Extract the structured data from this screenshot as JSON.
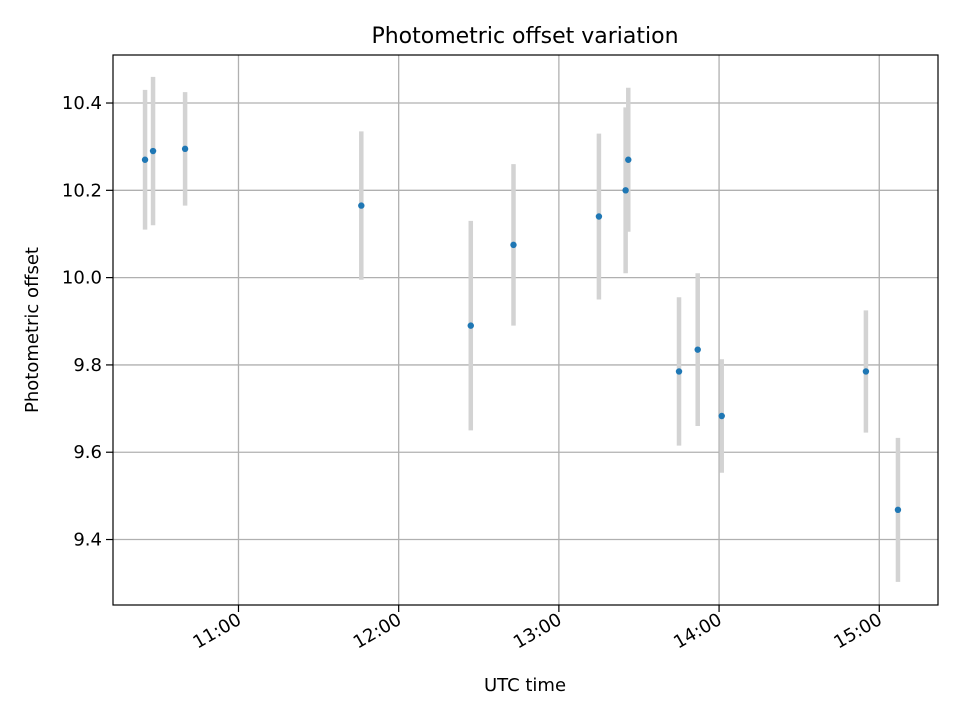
{
  "chart_data": {
    "type": "scatter",
    "title": "Photometric offset variation",
    "xlabel": "UTC time",
    "ylabel": "Photometric offset",
    "x_tick_labels": [
      "11:00",
      "12:00",
      "13:00",
      "14:00",
      "15:00"
    ],
    "x_ticks": [
      "11:00",
      "12:00",
      "13:00",
      "14:00",
      "15:00"
    ],
    "y_ticks": [
      9.4,
      9.6,
      9.8,
      10.0,
      10.2,
      10.4
    ],
    "y_tick_labels": [
      "9.4",
      "9.6",
      "9.8",
      "10.0",
      "10.2",
      "10.4"
    ],
    "xlim": [
      "10:13",
      "15:22"
    ],
    "ylim": [
      9.25,
      10.51
    ],
    "grid": true,
    "marker_color": "#1f77b4",
    "errorbar_color": "#d3d3d3",
    "points": [
      {
        "x": "10:25",
        "y": 10.27,
        "err": 0.16
      },
      {
        "x": "10:28",
        "y": 10.29,
        "err": 0.17
      },
      {
        "x": "10:40",
        "y": 10.295,
        "err": 0.13
      },
      {
        "x": "11:46",
        "y": 10.165,
        "err": 0.17
      },
      {
        "x": "12:27",
        "y": 9.89,
        "err": 0.24
      },
      {
        "x": "12:43",
        "y": 10.075,
        "err": 0.185
      },
      {
        "x": "13:15",
        "y": 10.14,
        "err": 0.19
      },
      {
        "x": "13:25",
        "y": 10.2,
        "err": 0.19
      },
      {
        "x": "13:26",
        "y": 10.27,
        "err": 0.165
      },
      {
        "x": "13:45",
        "y": 9.785,
        "err": 0.17
      },
      {
        "x": "13:52",
        "y": 9.835,
        "err": 0.175
      },
      {
        "x": "14:01",
        "y": 9.683,
        "err": 0.13
      },
      {
        "x": "14:55",
        "y": 9.785,
        "err": 0.14
      },
      {
        "x": "15:07",
        "y": 9.468,
        "err": 0.165
      }
    ]
  }
}
